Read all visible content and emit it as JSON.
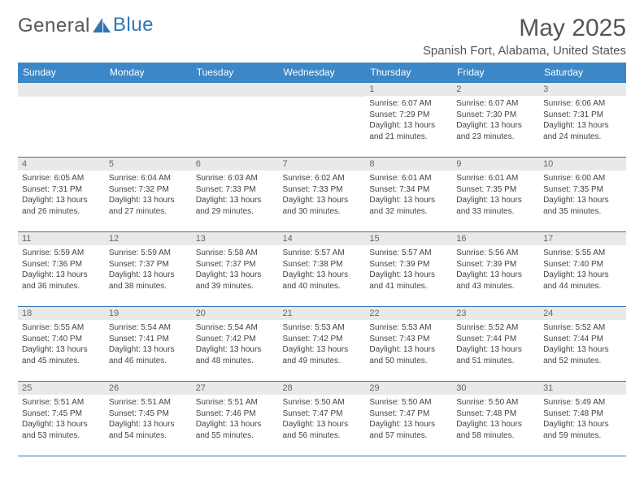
{
  "brand": {
    "word1": "General",
    "word2": "Blue"
  },
  "title": "May 2025",
  "location": "Spanish Fort, Alabama, United States",
  "colors": {
    "header_bg": "#3b87c8",
    "header_text": "#ffffff",
    "row_border": "#2f76b8",
    "daynum_bg": "#e9e9e9",
    "text": "#444444",
    "title_text": "#555555",
    "logo_accent": "#2f76b8"
  },
  "weekdays": [
    "Sunday",
    "Monday",
    "Tuesday",
    "Wednesday",
    "Thursday",
    "Friday",
    "Saturday"
  ],
  "first_weekday_index": 4,
  "days": [
    {
      "n": 1,
      "sunrise": "6:07 AM",
      "sunset": "7:29 PM",
      "daylight": "13 hours and 21 minutes."
    },
    {
      "n": 2,
      "sunrise": "6:07 AM",
      "sunset": "7:30 PM",
      "daylight": "13 hours and 23 minutes."
    },
    {
      "n": 3,
      "sunrise": "6:06 AM",
      "sunset": "7:31 PM",
      "daylight": "13 hours and 24 minutes."
    },
    {
      "n": 4,
      "sunrise": "6:05 AM",
      "sunset": "7:31 PM",
      "daylight": "13 hours and 26 minutes."
    },
    {
      "n": 5,
      "sunrise": "6:04 AM",
      "sunset": "7:32 PM",
      "daylight": "13 hours and 27 minutes."
    },
    {
      "n": 6,
      "sunrise": "6:03 AM",
      "sunset": "7:33 PM",
      "daylight": "13 hours and 29 minutes."
    },
    {
      "n": 7,
      "sunrise": "6:02 AM",
      "sunset": "7:33 PM",
      "daylight": "13 hours and 30 minutes."
    },
    {
      "n": 8,
      "sunrise": "6:01 AM",
      "sunset": "7:34 PM",
      "daylight": "13 hours and 32 minutes."
    },
    {
      "n": 9,
      "sunrise": "6:01 AM",
      "sunset": "7:35 PM",
      "daylight": "13 hours and 33 minutes."
    },
    {
      "n": 10,
      "sunrise": "6:00 AM",
      "sunset": "7:35 PM",
      "daylight": "13 hours and 35 minutes."
    },
    {
      "n": 11,
      "sunrise": "5:59 AM",
      "sunset": "7:36 PM",
      "daylight": "13 hours and 36 minutes."
    },
    {
      "n": 12,
      "sunrise": "5:59 AM",
      "sunset": "7:37 PM",
      "daylight": "13 hours and 38 minutes."
    },
    {
      "n": 13,
      "sunrise": "5:58 AM",
      "sunset": "7:37 PM",
      "daylight": "13 hours and 39 minutes."
    },
    {
      "n": 14,
      "sunrise": "5:57 AM",
      "sunset": "7:38 PM",
      "daylight": "13 hours and 40 minutes."
    },
    {
      "n": 15,
      "sunrise": "5:57 AM",
      "sunset": "7:39 PM",
      "daylight": "13 hours and 41 minutes."
    },
    {
      "n": 16,
      "sunrise": "5:56 AM",
      "sunset": "7:39 PM",
      "daylight": "13 hours and 43 minutes."
    },
    {
      "n": 17,
      "sunrise": "5:55 AM",
      "sunset": "7:40 PM",
      "daylight": "13 hours and 44 minutes."
    },
    {
      "n": 18,
      "sunrise": "5:55 AM",
      "sunset": "7:40 PM",
      "daylight": "13 hours and 45 minutes."
    },
    {
      "n": 19,
      "sunrise": "5:54 AM",
      "sunset": "7:41 PM",
      "daylight": "13 hours and 46 minutes."
    },
    {
      "n": 20,
      "sunrise": "5:54 AM",
      "sunset": "7:42 PM",
      "daylight": "13 hours and 48 minutes."
    },
    {
      "n": 21,
      "sunrise": "5:53 AM",
      "sunset": "7:42 PM",
      "daylight": "13 hours and 49 minutes."
    },
    {
      "n": 22,
      "sunrise": "5:53 AM",
      "sunset": "7:43 PM",
      "daylight": "13 hours and 50 minutes."
    },
    {
      "n": 23,
      "sunrise": "5:52 AM",
      "sunset": "7:44 PM",
      "daylight": "13 hours and 51 minutes."
    },
    {
      "n": 24,
      "sunrise": "5:52 AM",
      "sunset": "7:44 PM",
      "daylight": "13 hours and 52 minutes."
    },
    {
      "n": 25,
      "sunrise": "5:51 AM",
      "sunset": "7:45 PM",
      "daylight": "13 hours and 53 minutes."
    },
    {
      "n": 26,
      "sunrise": "5:51 AM",
      "sunset": "7:45 PM",
      "daylight": "13 hours and 54 minutes."
    },
    {
      "n": 27,
      "sunrise": "5:51 AM",
      "sunset": "7:46 PM",
      "daylight": "13 hours and 55 minutes."
    },
    {
      "n": 28,
      "sunrise": "5:50 AM",
      "sunset": "7:47 PM",
      "daylight": "13 hours and 56 minutes."
    },
    {
      "n": 29,
      "sunrise": "5:50 AM",
      "sunset": "7:47 PM",
      "daylight": "13 hours and 57 minutes."
    },
    {
      "n": 30,
      "sunrise": "5:50 AM",
      "sunset": "7:48 PM",
      "daylight": "13 hours and 58 minutes."
    },
    {
      "n": 31,
      "sunrise": "5:49 AM",
      "sunset": "7:48 PM",
      "daylight": "13 hours and 59 minutes."
    }
  ],
  "labels": {
    "sunrise": "Sunrise:",
    "sunset": "Sunset:",
    "daylight": "Daylight:"
  }
}
